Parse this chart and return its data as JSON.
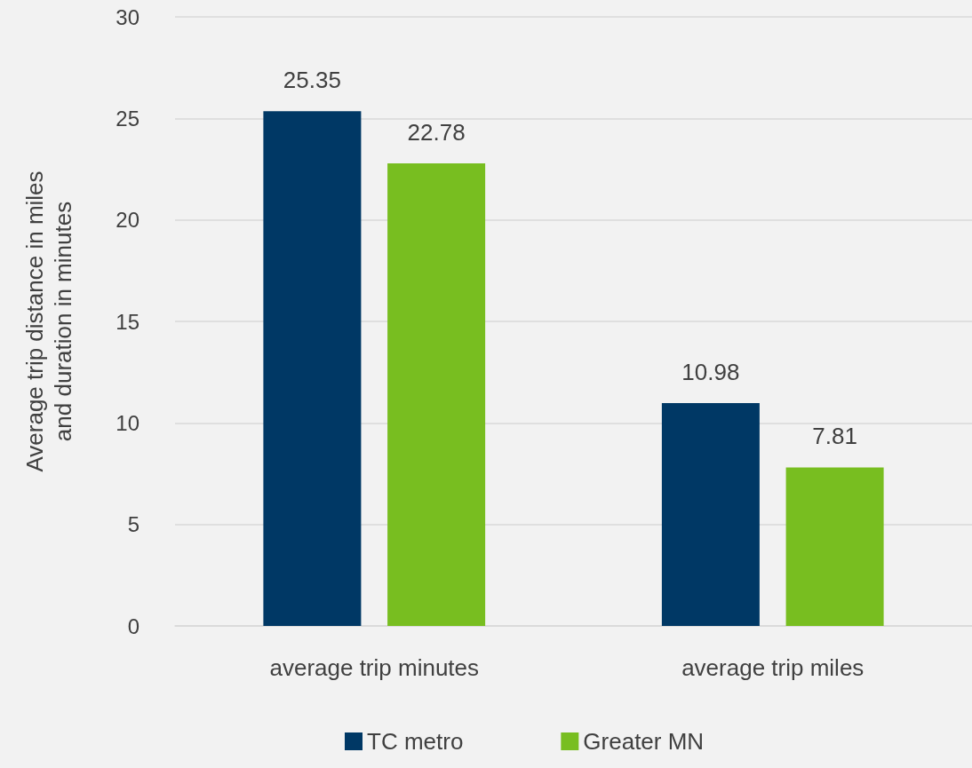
{
  "chart_data": {
    "type": "bar",
    "ylabel": "Average trip distance in miles\nand duration in minutes",
    "categories": [
      "average trip minutes",
      "average trip miles"
    ],
    "series": [
      {
        "name": "TC metro",
        "color": "#003865",
        "values": [
          25.35,
          10.98
        ]
      },
      {
        "name": "Greater MN",
        "color": "#78be20",
        "values": [
          22.78,
          7.81
        ]
      }
    ],
    "ylim": [
      0,
      30
    ],
    "yticks": [
      0,
      5,
      10,
      15,
      20,
      25,
      30
    ],
    "grid": "y",
    "legend": "bottom",
    "data_labels": true
  }
}
